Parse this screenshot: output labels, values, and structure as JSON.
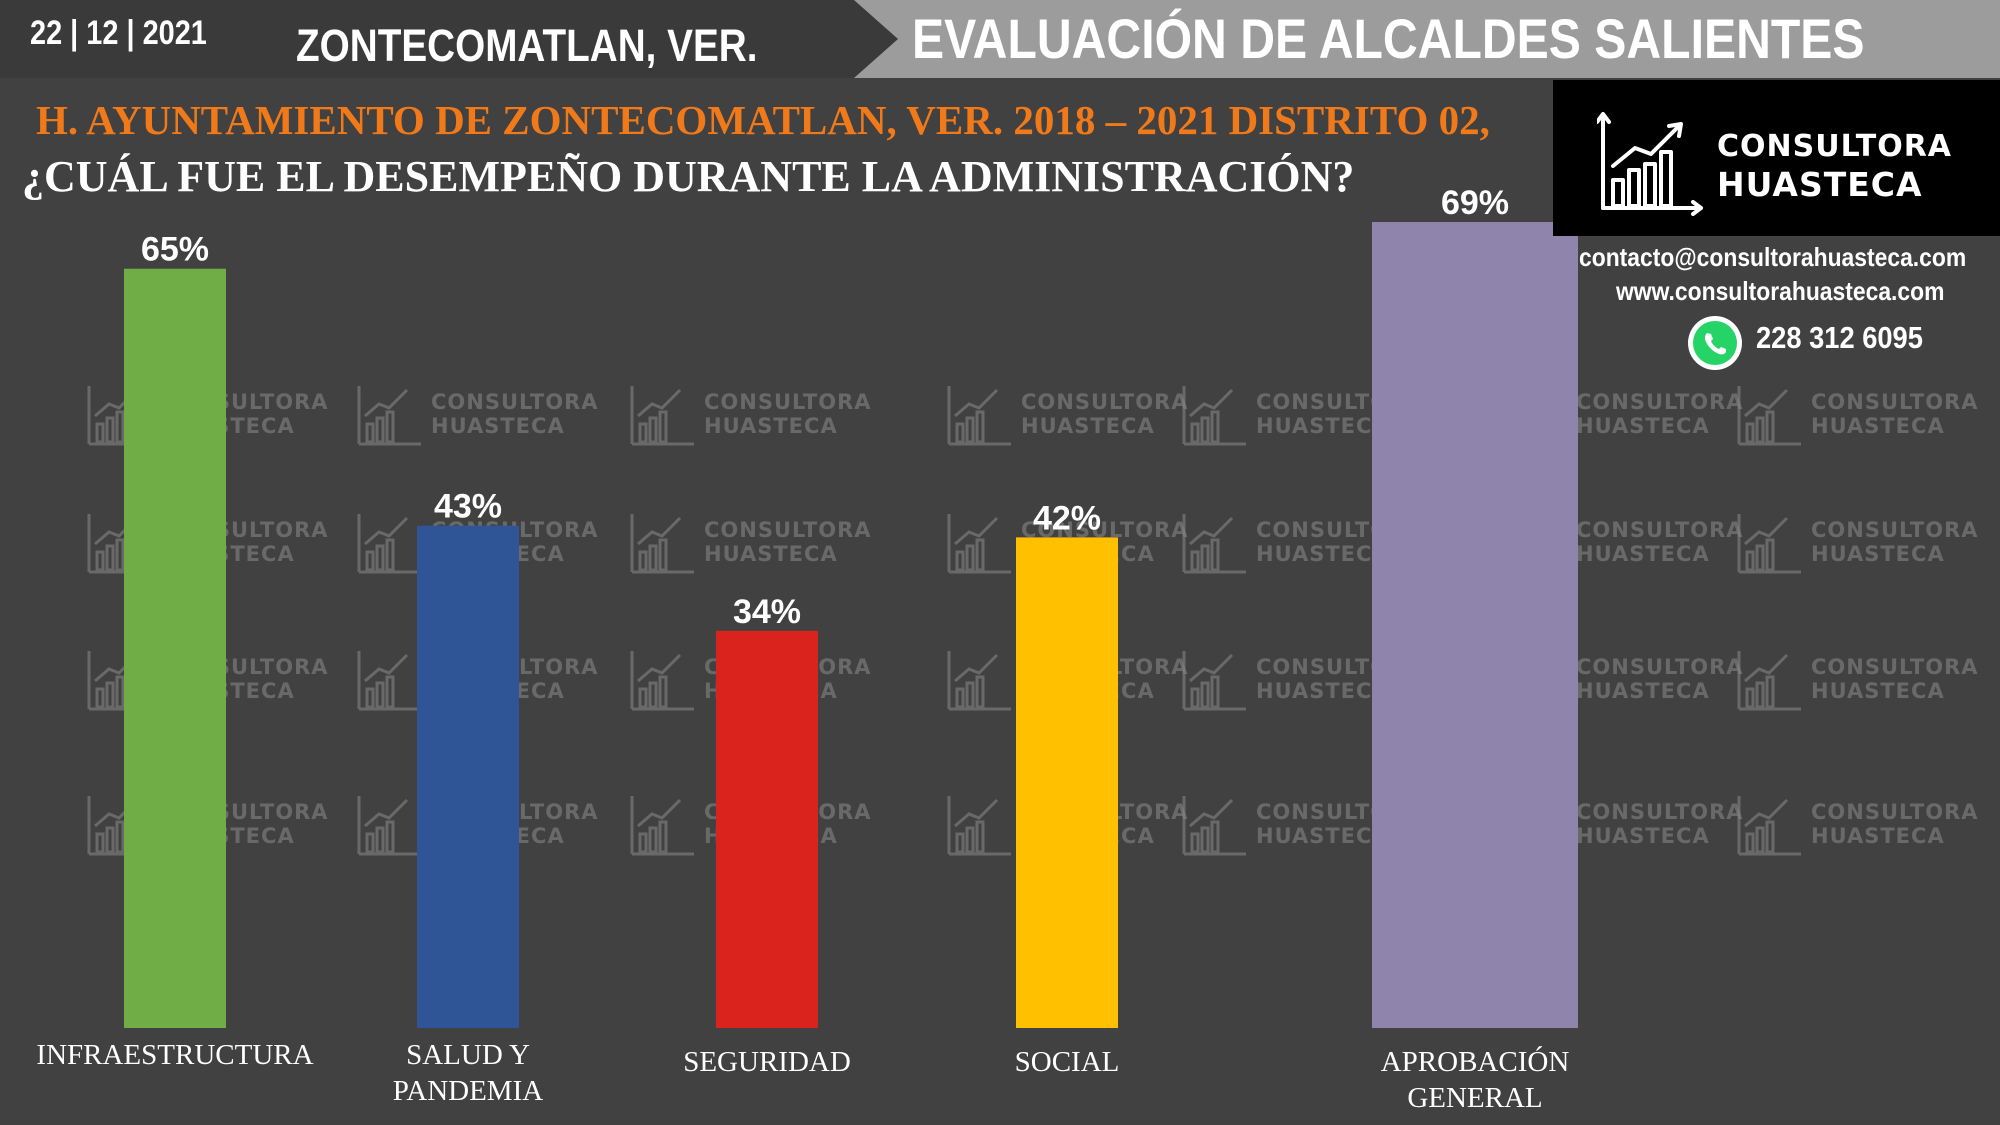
{
  "header": {
    "date": "22 | 12 | 2021",
    "city": "ZONTECOMATLAN, VER.",
    "banner": "EVALUACIÓN DE ALCALDES SALIENTES"
  },
  "subtitle": "H. AYUNTAMIENTO DE ZONTECOMATLAN, VER. 2018 – 2021 DISTRITO 02,",
  "question": "¿CUÁL FUE EL DESEMPEÑO DURANTE LA ADMINISTRACIÓN?",
  "brand": {
    "line1": "CONSULTORA",
    "line2": "HUASTECA",
    "icon": "growth-chart-logo-icon"
  },
  "contact": {
    "email": "contacto@consultorahuasteca.com",
    "website": "www.consultorahuasteca.com",
    "phone": "228 312 6095",
    "phone_icon": "whatsapp-icon"
  },
  "chart_data": {
    "type": "bar",
    "categories": [
      [
        "INFRAESTRUCTURA"
      ],
      [
        "SALUD Y",
        "PANDEMIA"
      ],
      [
        "SEGURIDAD"
      ],
      [
        "SOCIAL"
      ],
      [
        "APROBACIÓN",
        "GENERAL"
      ]
    ],
    "values": [
      65,
      43,
      34,
      42,
      69
    ],
    "data_labels": [
      "65%",
      "43%",
      "34%",
      "42%",
      "69%"
    ],
    "colors": [
      "#70ad47",
      "#2f5597",
      "#d9231c",
      "#ffc000",
      "#8f85ac"
    ],
    "ylim": [
      0,
      69
    ],
    "grid": false,
    "legend": "none"
  }
}
